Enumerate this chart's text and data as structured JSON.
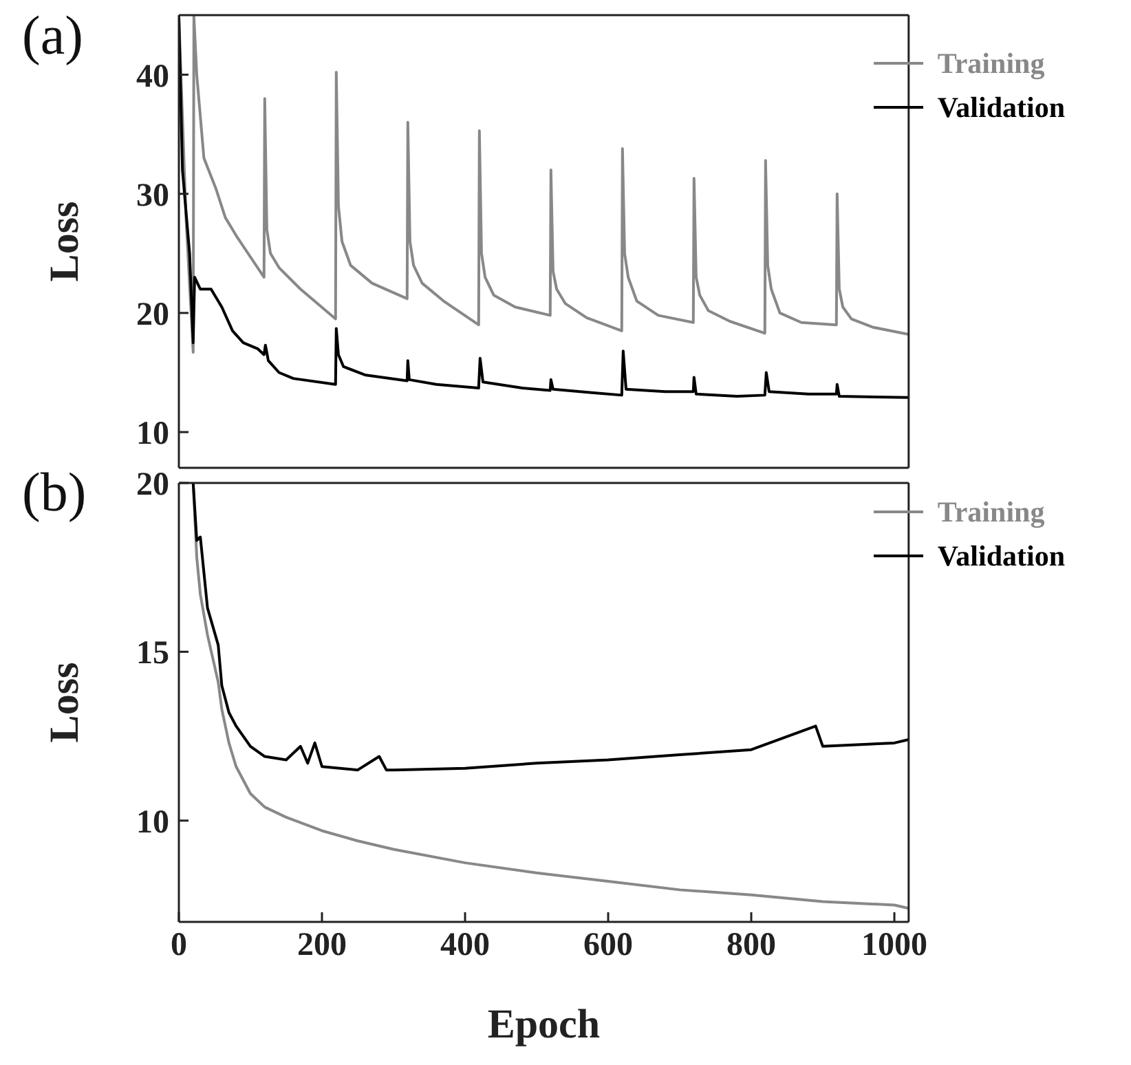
{
  "chart_data": [
    {
      "type": "line",
      "ylabel": "Loss",
      "annotations": [
        "(a)"
      ],
      "xlim": [
        0,
        1020
      ],
      "xticks": [
        0,
        200,
        400,
        600,
        800,
        1000
      ],
      "ylim": [
        7,
        45
      ],
      "yticks": [
        10,
        20,
        30,
        40
      ],
      "tick_labels": "y",
      "legend": "top right",
      "series": [
        {
          "name": "Training",
          "color": "#888888",
          "x": [
            0,
            10,
            18,
            20,
            21,
            25,
            35,
            52,
            65,
            80,
            100,
            119,
            120,
            123,
            128,
            140,
            170,
            219,
            220,
            223,
            228,
            240,
            270,
            319,
            320,
            323,
            328,
            340,
            370,
            419,
            420,
            423,
            428,
            440,
            470,
            519,
            520,
            523,
            528,
            540,
            570,
            619,
            620,
            623,
            628,
            640,
            670,
            719,
            720,
            723,
            728,
            740,
            770,
            819,
            820,
            823,
            828,
            840,
            870,
            919,
            920,
            923,
            928,
            940,
            970,
            1020
          ],
          "values": [
            44.9,
            28,
            19,
            16.7,
            44.9,
            40,
            33,
            30.4,
            28,
            26.5,
            24.7,
            23,
            38,
            27,
            25,
            23.8,
            22,
            19.5,
            40.2,
            29,
            26,
            24,
            22.5,
            21.2,
            36,
            26,
            24,
            22.5,
            21,
            19,
            35.3,
            25,
            23,
            21.5,
            20.5,
            19.8,
            32,
            23.5,
            22,
            20.8,
            19.6,
            18.5,
            33.8,
            25,
            23,
            21,
            19.8,
            19.2,
            31.3,
            23,
            21.5,
            20.2,
            19.3,
            18.3,
            32.8,
            24,
            22,
            20,
            19.2,
            19,
            30,
            22,
            20.5,
            19.5,
            18.8,
            18.2
          ]
        },
        {
          "name": "Validation",
          "color": "#000000",
          "x": [
            0,
            5,
            15,
            19,
            20,
            22,
            30,
            45,
            50,
            60,
            75,
            90,
            110,
            119,
            121,
            125,
            140,
            160,
            219,
            220,
            223,
            230,
            260,
            319,
            320,
            322,
            360,
            419,
            421,
            425,
            480,
            519,
            520,
            523,
            580,
            619,
            621,
            625,
            680,
            719,
            720,
            723,
            780,
            819,
            821,
            825,
            880,
            919,
            920,
            923,
            1020
          ],
          "values": [
            44.9,
            32,
            25,
            19,
            17.5,
            23,
            22,
            22,
            21.5,
            20.5,
            18.5,
            17.5,
            17,
            16.5,
            17.3,
            16,
            15,
            14.5,
            14,
            18.7,
            16.5,
            15.5,
            14.8,
            14.3,
            16,
            14.4,
            14,
            13.7,
            16.2,
            14.2,
            13.7,
            13.5,
            14.4,
            13.6,
            13.3,
            13.1,
            16.8,
            13.6,
            13.4,
            13.4,
            14.6,
            13.2,
            13,
            13.1,
            15,
            13.4,
            13.2,
            13.2,
            14,
            13,
            12.9
          ]
        }
      ]
    },
    {
      "type": "line",
      "xlabel": "Epoch",
      "ylabel": "Loss",
      "annotations": [
        "(b)"
      ],
      "xlim": [
        0,
        1020
      ],
      "xticks": [
        0,
        200,
        400,
        600,
        800,
        1000
      ],
      "ylim": [
        7,
        20
      ],
      "yticks": [
        10,
        15,
        20
      ],
      "legend": "top right",
      "series": [
        {
          "name": "Training",
          "color": "#888888",
          "x": [
            20,
            25,
            30,
            40,
            55,
            60,
            70,
            80,
            100,
            120,
            150,
            200,
            250,
            300,
            400,
            500,
            600,
            700,
            800,
            900,
            1000,
            1020
          ],
          "values": [
            20,
            17.8,
            16.7,
            15.5,
            14.1,
            13.3,
            12.3,
            11.6,
            10.8,
            10.4,
            10.1,
            9.7,
            9.4,
            9.15,
            8.75,
            8.45,
            8.2,
            7.95,
            7.8,
            7.6,
            7.5,
            7.4
          ]
        },
        {
          "name": "Validation",
          "color": "#000000",
          "x": [
            20,
            25,
            30,
            40,
            55,
            60,
            70,
            80,
            100,
            120,
            150,
            170,
            180,
            190,
            200,
            250,
            280,
            290,
            300,
            400,
            500,
            600,
            700,
            800,
            890,
            900,
            1000,
            1020
          ],
          "values": [
            20,
            18.3,
            18.4,
            16.3,
            15.2,
            14,
            13.2,
            12.8,
            12.2,
            11.9,
            11.8,
            12.2,
            11.7,
            12.3,
            11.6,
            11.5,
            11.9,
            11.5,
            11.5,
            11.55,
            11.7,
            11.8,
            11.95,
            12.1,
            12.8,
            12.2,
            12.3,
            12.4
          ]
        }
      ]
    }
  ]
}
